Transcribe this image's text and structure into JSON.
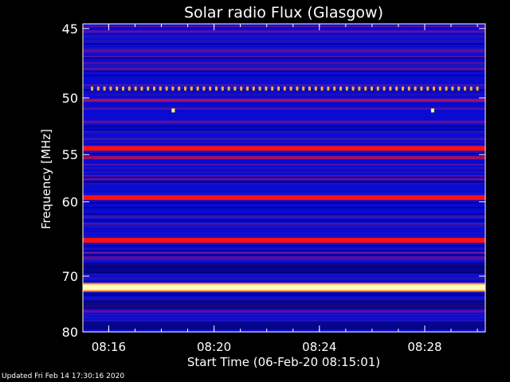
{
  "chart_data": {
    "type": "heatmap",
    "title": "Solar radio Flux (Glasgow)",
    "xlabel": "Start Time (06-Feb-20 08:15:01)",
    "ylabel": "Frequency [MHz]",
    "x_start_minutes": 15.02,
    "x_end_minutes": 30.3,
    "xlim_label": [
      "08:15:01",
      "08:30:18"
    ],
    "x_ticks": [
      {
        "minute": 16,
        "label": "08:16"
      },
      {
        "minute": 20,
        "label": "08:20"
      },
      {
        "minute": 24,
        "label": "08:24"
      },
      {
        "minute": 28,
        "label": "08:28"
      }
    ],
    "ylim": [
      80,
      44.7
    ],
    "y_scale": "reciprocal",
    "y_ticks": [
      45,
      50,
      55,
      60,
      70,
      80
    ],
    "background_level": "blue",
    "bands": [
      {
        "freq": 45.2,
        "intensity": 0.25
      },
      {
        "freq": 46.5,
        "intensity": 0.3
      },
      {
        "freq": 47.8,
        "intensity": 0.3
      },
      {
        "freq": 50.2,
        "intensity": 0.45
      },
      {
        "freq": 52.0,
        "intensity": 0.3
      },
      {
        "freq": 54.4,
        "intensity": 0.72
      },
      {
        "freq": 55.3,
        "intensity": 0.4
      },
      {
        "freq": 57.5,
        "intensity": 0.3
      },
      {
        "freq": 59.5,
        "intensity": 0.7
      },
      {
        "freq": 64.8,
        "intensity": 0.72
      },
      {
        "freq": 66.5,
        "intensity": 0.3
      },
      {
        "freq": 71.8,
        "intensity": 1.0
      },
      {
        "freq": 76.0,
        "intensity": 0.25
      }
    ],
    "pulse_series": {
      "freq": 49.3,
      "color": "#ffb030"
    },
    "spots": [
      {
        "minute": 18.45,
        "freq": 51.0
      },
      {
        "minute": 28.3,
        "freq": 51.0
      }
    ],
    "colors": {
      "background": "#000000",
      "low": "#0a0ad0",
      "mid": "#6010a0",
      "high": "#ff1010",
      "peak": "#ffffc0"
    }
  },
  "footer": "Updated Fri Feb 14 17:30:16 2020"
}
